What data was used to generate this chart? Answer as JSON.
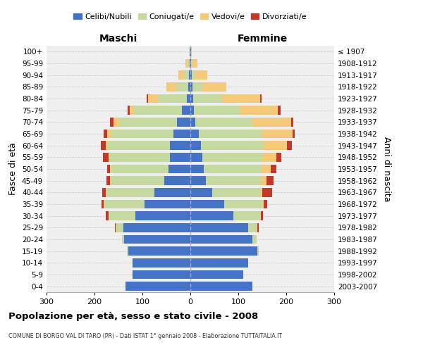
{
  "age_groups": [
    "0-4",
    "5-9",
    "10-14",
    "15-19",
    "20-24",
    "25-29",
    "30-34",
    "35-39",
    "40-44",
    "45-49",
    "50-54",
    "55-59",
    "60-64",
    "65-69",
    "70-74",
    "75-79",
    "80-84",
    "85-89",
    "90-94",
    "95-99",
    "100+"
  ],
  "birth_years": [
    "2003-2007",
    "1998-2002",
    "1993-1997",
    "1988-1992",
    "1983-1987",
    "1978-1982",
    "1973-1977",
    "1968-1972",
    "1963-1967",
    "1958-1962",
    "1953-1957",
    "1948-1952",
    "1943-1947",
    "1938-1942",
    "1933-1937",
    "1928-1932",
    "1923-1927",
    "1918-1922",
    "1913-1917",
    "1908-1912",
    "≤ 1907"
  ],
  "colors": {
    "celibi": "#4472c4",
    "coniugati": "#c5d9a0",
    "vedovi": "#f5c97a",
    "divorziati": "#c0392b"
  },
  "maschi": {
    "celibi": [
      135,
      120,
      120,
      130,
      138,
      140,
      115,
      95,
      75,
      55,
      45,
      42,
      42,
      35,
      28,
      18,
      8,
      5,
      3,
      2,
      1
    ],
    "coniugati": [
      0,
      0,
      0,
      2,
      5,
      15,
      55,
      85,
      100,
      110,
      120,
      125,
      130,
      130,
      120,
      100,
      60,
      25,
      10,
      3,
      0
    ],
    "vedovi": [
      0,
      0,
      0,
      0,
      0,
      1,
      1,
      1,
      1,
      2,
      3,
      4,
      5,
      8,
      12,
      8,
      20,
      20,
      12,
      5,
      1
    ],
    "divorziati": [
      0,
      0,
      0,
      0,
      0,
      2,
      5,
      5,
      8,
      8,
      5,
      12,
      10,
      8,
      8,
      5,
      3,
      0,
      0,
      0,
      0
    ]
  },
  "femmine": {
    "celibi": [
      130,
      110,
      120,
      140,
      130,
      120,
      90,
      70,
      45,
      32,
      28,
      25,
      22,
      18,
      10,
      8,
      6,
      5,
      3,
      2,
      1
    ],
    "coniugati": [
      0,
      0,
      0,
      2,
      8,
      18,
      55,
      80,
      100,
      115,
      120,
      125,
      130,
      130,
      120,
      95,
      60,
      20,
      8,
      2,
      0
    ],
    "vedovi": [
      0,
      0,
      0,
      0,
      0,
      2,
      2,
      3,
      5,
      12,
      20,
      30,
      50,
      65,
      80,
      80,
      80,
      50,
      25,
      10,
      2
    ],
    "divorziati": [
      0,
      0,
      0,
      0,
      0,
      2,
      5,
      8,
      20,
      15,
      12,
      10,
      10,
      5,
      5,
      5,
      3,
      0,
      0,
      0,
      0
    ]
  },
  "title": "Popolazione per età, sesso e stato civile - 2008",
  "subtitle": "COMUNE DI BORGO VAL DI TARO (PR) - Dati ISTAT 1° gennaio 2008 - Elaborazione TUTTAITALIA.IT",
  "ylabel_left": "Fasce di età",
  "ylabel_right": "Anni di nascita",
  "xlabel_left": "Maschi",
  "xlabel_right": "Femmine",
  "xlim": 300,
  "xtick_vals": [
    -300,
    -200,
    -100,
    0,
    100,
    200,
    300
  ],
  "xtick_labels": [
    "300",
    "200",
    "100",
    "0",
    "100",
    "200",
    "300"
  ],
  "legend_labels": [
    "Celibi/Nubili",
    "Coniugati/e",
    "Vedovi/e",
    "Divorziati/e"
  ],
  "background_color": "#ffffff",
  "plot_bg_color": "#efefef",
  "bar_height": 0.75
}
